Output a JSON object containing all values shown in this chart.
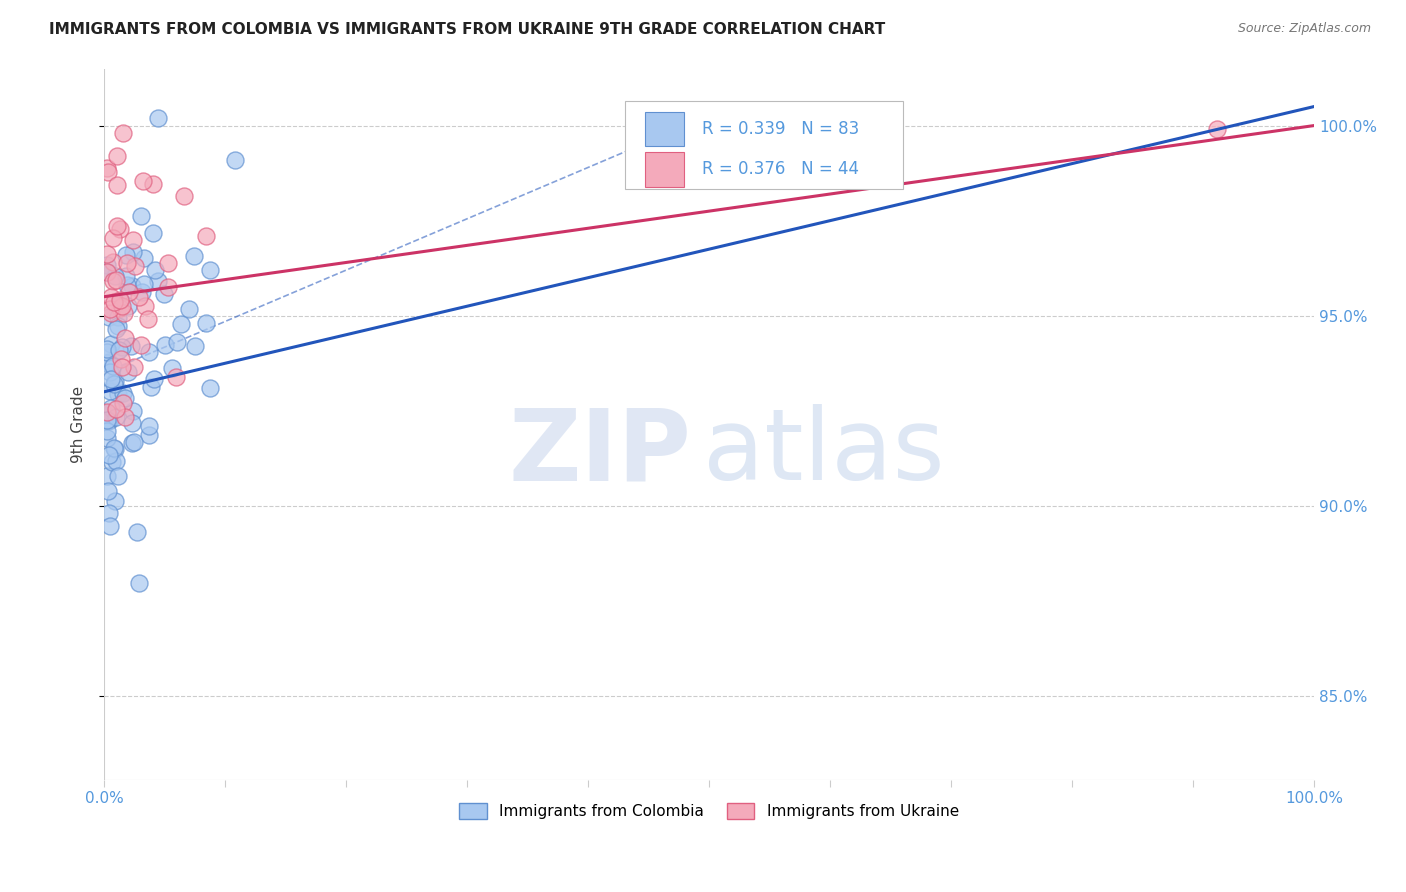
{
  "title": "IMMIGRANTS FROM COLOMBIA VS IMMIGRANTS FROM UKRAINE 9TH GRADE CORRELATION CHART",
  "source": "Source: ZipAtlas.com",
  "ylabel": "9th Grade",
  "xlim": [
    0.0,
    1.0
  ],
  "ylim": [
    0.828,
    1.015
  ],
  "yticks": [
    0.85,
    0.9,
    0.95,
    1.0
  ],
  "ytick_labels": [
    "85.0%",
    "90.0%",
    "95.0%",
    "100.0%"
  ],
  "xtick_labels": [
    "0.0%",
    "",
    "",
    "",
    "",
    "",
    "",
    "",
    "",
    "",
    "100.0%"
  ],
  "colombia_color": "#a8c8f0",
  "ukraine_color": "#f4aabb",
  "colombia_edge": "#6090d0",
  "ukraine_edge": "#e06080",
  "trend_colombia_color": "#2255bb",
  "trend_ukraine_color": "#cc3366",
  "R_colombia": 0.339,
  "N_colombia": 83,
  "R_ukraine": 0.376,
  "N_ukraine": 44,
  "grid_color": "#cccccc",
  "tick_color": "#5599dd",
  "title_color": "#222222",
  "source_color": "#777777"
}
